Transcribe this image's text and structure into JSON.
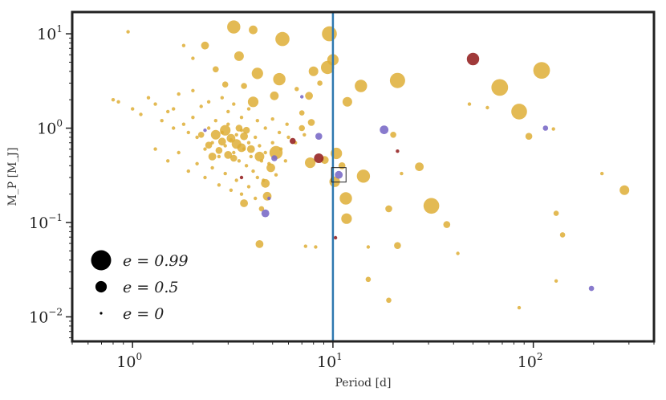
{
  "chart_data": {
    "type": "scatter",
    "title": "",
    "xlabel": "Period [d]",
    "ylabel": "M_P [M_J]",
    "xscale": "log",
    "yscale": "log",
    "xlim": [
      0.5,
      400
    ],
    "ylim": [
      0.0055,
      17
    ],
    "x_ticks": [
      {
        "base": "10",
        "exp": "0",
        "value": 1
      },
      {
        "base": "10",
        "exp": "1",
        "value": 10
      },
      {
        "base": "10",
        "exp": "2",
        "value": 100
      }
    ],
    "y_ticks": [
      {
        "base": "10",
        "exp": "1",
        "value": 10
      },
      {
        "base": "10",
        "exp": "0",
        "value": 1
      },
      {
        "base": "10",
        "exp": "−1",
        "value": 0.1
      },
      {
        "base": "10",
        "exp": "−2",
        "value": 0.01
      }
    ],
    "vline": {
      "x": 10,
      "color": "#2e78b0"
    },
    "colors": {
      "yellow": "#deae36",
      "purple": "#7b6cc8",
      "red": "#962525"
    },
    "highlight": {
      "x": 10.7,
      "y": 0.32
    },
    "legend": [
      {
        "label": "e = 0.99",
        "e": 0.99
      },
      {
        "label": "e = 0.5",
        "e": 0.5
      },
      {
        "label": "e = 0",
        "e": 0
      }
    ],
    "series": [
      {
        "name": "yellow",
        "color": "#deae36",
        "points": [
          [
            0.95,
            10.5,
            0.05
          ],
          [
            1.8,
            7.5,
            0.05
          ],
          [
            2.0,
            5.5,
            0.05
          ],
          [
            2.3,
            7.5,
            0.3
          ],
          [
            3.2,
            11.8,
            0.6
          ],
          [
            4.0,
            11.0,
            0.35
          ],
          [
            3.4,
            5.8,
            0.4
          ],
          [
            4.2,
            3.8,
            0.5
          ],
          [
            2.6,
            4.2,
            0.2
          ],
          [
            5.6,
            8.8,
            0.65
          ],
          [
            9.6,
            10.0,
            0.7
          ],
          [
            10.0,
            5.3,
            0.5
          ],
          [
            9.4,
            4.4,
            0.6
          ],
          [
            8.0,
            4.0,
            0.4
          ],
          [
            5.4,
            3.3,
            0.55
          ],
          [
            5.1,
            2.2,
            0.35
          ],
          [
            4.0,
            1.9,
            0.45
          ],
          [
            3.6,
            2.8,
            0.2
          ],
          [
            2.9,
            2.9,
            0.2
          ],
          [
            6.6,
            2.6,
            0.1
          ],
          [
            7.6,
            2.2,
            0.3
          ],
          [
            8.6,
            3.0,
            0.15
          ],
          [
            11.8,
            1.9,
            0.4
          ],
          [
            13.8,
            2.8,
            0.55
          ],
          [
            21.0,
            3.2,
            0.72
          ],
          [
            68.0,
            2.7,
            0.8
          ],
          [
            110.0,
            4.1,
            0.8
          ],
          [
            85.0,
            1.5,
            0.75
          ],
          [
            59.0,
            1.65,
            0.05
          ],
          [
            48.0,
            1.8,
            0.05
          ],
          [
            95.0,
            0.82,
            0.25
          ],
          [
            126.0,
            0.98,
            0.05
          ],
          [
            20.0,
            0.85,
            0.2
          ],
          [
            7.0,
            1.45,
            0.15
          ],
          [
            7.8,
            1.15,
            0.25
          ],
          [
            7.0,
            1.0,
            0.2
          ],
          [
            5.2,
            0.55,
            0.6
          ],
          [
            4.3,
            0.5,
            0.4
          ],
          [
            4.9,
            0.38,
            0.35
          ],
          [
            4.6,
            0.26,
            0.35
          ],
          [
            4.7,
            0.19,
            0.35
          ],
          [
            4.4,
            0.14,
            0.15
          ],
          [
            3.6,
            0.16,
            0.3
          ],
          [
            4.3,
            0.059,
            0.3
          ],
          [
            7.7,
            0.43,
            0.45
          ],
          [
            9.1,
            0.46,
            0.3
          ],
          [
            10.4,
            0.54,
            0.5
          ],
          [
            11.1,
            0.4,
            0.25
          ],
          [
            10.2,
            0.27,
            0.45
          ],
          [
            11.6,
            0.18,
            0.55
          ],
          [
            11.7,
            0.11,
            0.45
          ],
          [
            14.2,
            0.31,
            0.6
          ],
          [
            22.0,
            0.33,
            0.05
          ],
          [
            27.0,
            0.39,
            0.35
          ],
          [
            31.0,
            0.15,
            0.75
          ],
          [
            37.0,
            0.095,
            0.25
          ],
          [
            19.0,
            0.14,
            0.25
          ],
          [
            21.0,
            0.057,
            0.25
          ],
          [
            15.0,
            0.055,
            0.05
          ],
          [
            8.2,
            0.055,
            0.05
          ],
          [
            7.3,
            0.056,
            0.05
          ],
          [
            42.0,
            0.047,
            0.05
          ],
          [
            130.0,
            0.125,
            0.15
          ],
          [
            140.0,
            0.074,
            0.15
          ],
          [
            130.0,
            0.024,
            0.05
          ],
          [
            85.0,
            0.0125,
            0.05
          ],
          [
            19.0,
            0.015,
            0.15
          ],
          [
            15.0,
            0.025,
            0.15
          ],
          [
            220.0,
            0.33,
            0.05
          ],
          [
            285.0,
            0.22,
            0.4
          ],
          [
            0.8,
            2.0,
            0.05
          ],
          [
            0.85,
            1.9,
            0.05
          ],
          [
            1.0,
            1.6,
            0.05
          ],
          [
            1.1,
            1.4,
            0.05
          ],
          [
            1.2,
            2.1,
            0.05
          ],
          [
            1.3,
            1.8,
            0.05
          ],
          [
            1.4,
            1.2,
            0.05
          ],
          [
            1.5,
            1.5,
            0.05
          ],
          [
            1.6,
            1.0,
            0.05
          ],
          [
            1.7,
            2.3,
            0.05
          ],
          [
            1.8,
            1.1,
            0.05
          ],
          [
            1.9,
            0.9,
            0.05
          ],
          [
            2.0,
            1.3,
            0.05
          ],
          [
            2.1,
            0.8,
            0.05
          ],
          [
            2.2,
            1.7,
            0.05
          ],
          [
            2.3,
            0.6,
            0.05
          ],
          [
            2.4,
            1.0,
            0.05
          ],
          [
            2.5,
            0.7,
            0.05
          ],
          [
            2.6,
            1.2,
            0.05
          ],
          [
            2.7,
            0.5,
            0.05
          ],
          [
            2.8,
            0.9,
            0.05
          ],
          [
            2.9,
            0.65,
            0.05
          ],
          [
            3.0,
            1.1,
            0.05
          ],
          [
            3.1,
            0.75,
            0.05
          ],
          [
            3.2,
            0.55,
            0.05
          ],
          [
            3.3,
            0.85,
            0.05
          ],
          [
            3.4,
            0.45,
            0.05
          ],
          [
            3.5,
            0.95,
            0.05
          ],
          [
            3.6,
            0.6,
            0.05
          ],
          [
            3.7,
            0.4,
            0.05
          ],
          [
            3.8,
            0.7,
            0.05
          ],
          [
            3.9,
            0.5,
            0.05
          ],
          [
            4.0,
            0.35,
            0.05
          ],
          [
            4.1,
            0.8,
            0.05
          ],
          [
            4.2,
            0.3,
            0.05
          ],
          [
            4.3,
            0.65,
            0.05
          ],
          [
            4.4,
            0.45,
            0.05
          ],
          [
            4.5,
            0.28,
            0.05
          ],
          [
            4.6,
            0.55,
            0.05
          ],
          [
            4.8,
            0.42,
            0.05
          ],
          [
            5.0,
            0.7,
            0.05
          ],
          [
            5.2,
            0.32,
            0.05
          ],
          [
            5.5,
            0.6,
            0.05
          ],
          [
            5.8,
            0.45,
            0.05
          ],
          [
            6.0,
            0.8,
            0.05
          ],
          [
            1.3,
            0.6,
            0.05
          ],
          [
            1.5,
            0.45,
            0.05
          ],
          [
            1.7,
            0.55,
            0.05
          ],
          [
            1.9,
            0.35,
            0.05
          ],
          [
            2.1,
            0.42,
            0.05
          ],
          [
            2.3,
            0.3,
            0.05
          ],
          [
            2.5,
            0.38,
            0.05
          ],
          [
            2.7,
            0.25,
            0.05
          ],
          [
            2.9,
            0.33,
            0.05
          ],
          [
            3.1,
            0.22,
            0.05
          ],
          [
            3.3,
            0.28,
            0.05
          ],
          [
            3.5,
            0.2,
            0.05
          ],
          [
            3.8,
            0.24,
            0.05
          ],
          [
            4.1,
            0.18,
            0.05
          ],
          [
            1.6,
            1.6,
            0.05
          ],
          [
            2.0,
            2.5,
            0.05
          ],
          [
            2.4,
            1.9,
            0.05
          ],
          [
            2.8,
            2.1,
            0.05
          ],
          [
            3.0,
            1.5,
            0.05
          ],
          [
            3.2,
            1.8,
            0.05
          ],
          [
            3.5,
            1.3,
            0.05
          ],
          [
            3.8,
            1.6,
            0.05
          ],
          [
            4.2,
            1.2,
            0.05
          ],
          [
            4.6,
            1.0,
            0.05
          ],
          [
            5.0,
            1.25,
            0.05
          ],
          [
            5.4,
            0.9,
            0.05
          ],
          [
            5.9,
            1.1,
            0.05
          ],
          [
            6.5,
            0.7,
            0.05
          ],
          [
            7.2,
            0.85,
            0.05
          ],
          [
            2.6,
            0.85,
            0.4
          ],
          [
            2.9,
            0.95,
            0.45
          ],
          [
            3.1,
            0.78,
            0.35
          ],
          [
            3.3,
            0.68,
            0.4
          ],
          [
            2.8,
            0.72,
            0.3
          ],
          [
            3.5,
            0.62,
            0.35
          ],
          [
            2.7,
            0.58,
            0.25
          ],
          [
            3.0,
            0.52,
            0.3
          ],
          [
            3.2,
            0.48,
            0.25
          ],
          [
            2.5,
            0.5,
            0.3
          ],
          [
            3.6,
            0.82,
            0.3
          ],
          [
            2.4,
            0.66,
            0.25
          ],
          [
            3.4,
            1.0,
            0.25
          ],
          [
            2.2,
            0.85,
            0.2
          ],
          [
            3.9,
            0.6,
            0.3
          ],
          [
            3.7,
            0.95,
            0.25
          ]
        ]
      },
      {
        "name": "purple",
        "color": "#7b6cc8",
        "points": [
          [
            7.0,
            2.15,
            0.05
          ],
          [
            8.5,
            0.82,
            0.25
          ],
          [
            10.7,
            0.32,
            0.3
          ],
          [
            4.6,
            0.125,
            0.3
          ],
          [
            5.1,
            0.48,
            0.2
          ],
          [
            18.0,
            0.96,
            0.35
          ],
          [
            115.0,
            1.0,
            0.15
          ],
          [
            195.0,
            0.02,
            0.15
          ],
          [
            2.3,
            0.95,
            0.05
          ],
          [
            4.8,
            0.18,
            0.05
          ]
        ]
      },
      {
        "name": "red",
        "color": "#962525",
        "points": [
          [
            50.0,
            5.4,
            0.55
          ],
          [
            8.5,
            0.48,
            0.4
          ],
          [
            6.3,
            0.73,
            0.2
          ],
          [
            21.0,
            0.57,
            0.05
          ],
          [
            10.3,
            0.069,
            0.05
          ],
          [
            3.5,
            0.3,
            0.05
          ]
        ]
      }
    ]
  }
}
